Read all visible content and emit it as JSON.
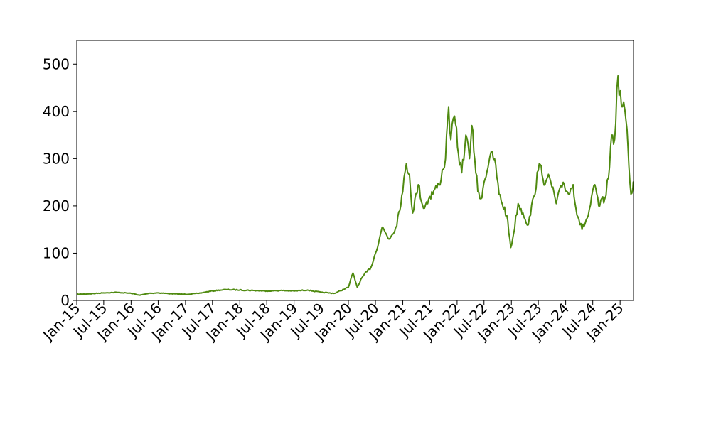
{
  "chart_data": {
    "type": "line",
    "title": "",
    "xlabel": "",
    "ylabel": "",
    "xlim": [
      "2015-01-01",
      "2025-04-01"
    ],
    "ylim": [
      0,
      550
    ],
    "grid": false,
    "legend": "none",
    "x_ticks": [
      "2015-01-01",
      "2015-07-01",
      "2016-01-01",
      "2016-07-01",
      "2017-01-01",
      "2017-07-01",
      "2018-01-01",
      "2018-07-01",
      "2019-01-01",
      "2019-07-01",
      "2020-01-01",
      "2020-07-01",
      "2021-01-01",
      "2021-07-01",
      "2022-01-01",
      "2022-07-01",
      "2023-01-01",
      "2023-07-01",
      "2024-01-01",
      "2024-07-01",
      "2025-01-01"
    ],
    "x_tick_labels": [
      "Jan-15",
      "Jul-15",
      "Jan-16",
      "Jul-16",
      "Jan-17",
      "Jul-17",
      "Jan-18",
      "Jul-18",
      "Jan-19",
      "Jul-19",
      "Jan-20",
      "Jul-20",
      "Jan-21",
      "Jul-21",
      "Jan-22",
      "Jul-22",
      "Jan-23",
      "Jul-23",
      "Jan-24",
      "Jul-24",
      "Jan-25"
    ],
    "y_ticks": [
      0,
      100,
      200,
      300,
      400,
      500
    ],
    "y_tick_labels": [
      "0",
      "100",
      "200",
      "300",
      "400",
      "500"
    ],
    "series": [
      {
        "color": "#4f8a10",
        "points": [
          [
            "2015-01-01",
            13
          ],
          [
            "2015-04-01",
            14
          ],
          [
            "2015-07-01",
            16
          ],
          [
            "2015-10-01",
            17
          ],
          [
            "2016-01-01",
            15
          ],
          [
            "2016-03-01",
            11
          ],
          [
            "2016-05-01",
            15
          ],
          [
            "2016-07-01",
            16
          ],
          [
            "2016-10-01",
            14
          ],
          [
            "2017-01-01",
            13
          ],
          [
            "2017-04-01",
            15
          ],
          [
            "2017-07-01",
            20
          ],
          [
            "2017-10-01",
            23
          ],
          [
            "2018-01-01",
            22
          ],
          [
            "2018-04-01",
            21
          ],
          [
            "2018-07-01",
            20
          ],
          [
            "2018-10-01",
            21
          ],
          [
            "2019-01-01",
            20
          ],
          [
            "2019-04-01",
            22
          ],
          [
            "2019-07-01",
            17
          ],
          [
            "2019-10-01",
            15
          ],
          [
            "2020-01-01",
            28
          ],
          [
            "2020-02-01",
            58
          ],
          [
            "2020-03-01",
            28
          ],
          [
            "2020-04-01",
            48
          ],
          [
            "2020-06-01",
            70
          ],
          [
            "2020-07-01",
            100
          ],
          [
            "2020-08-15",
            155
          ],
          [
            "2020-10-01",
            130
          ],
          [
            "2020-11-15",
            155
          ],
          [
            "2021-01-01",
            230
          ],
          [
            "2021-01-25",
            290
          ],
          [
            "2021-02-15",
            265
          ],
          [
            "2021-03-08",
            185
          ],
          [
            "2021-04-15",
            245
          ],
          [
            "2021-05-20",
            195
          ],
          [
            "2021-07-01",
            220
          ],
          [
            "2021-09-01",
            245
          ],
          [
            "2021-10-15",
            300
          ],
          [
            "2021-11-05",
            410
          ],
          [
            "2021-11-20",
            340
          ],
          [
            "2021-12-15",
            390
          ],
          [
            "2022-01-10",
            310
          ],
          [
            "2022-02-01",
            270
          ],
          [
            "2022-03-01",
            350
          ],
          [
            "2022-03-25",
            300
          ],
          [
            "2022-04-10",
            370
          ],
          [
            "2022-05-20",
            230
          ],
          [
            "2022-06-10",
            215
          ],
          [
            "2022-07-01",
            250
          ],
          [
            "2022-08-10",
            305
          ],
          [
            "2022-09-10",
            300
          ],
          [
            "2022-10-10",
            225
          ],
          [
            "2022-12-01",
            180
          ],
          [
            "2022-12-28",
            112
          ],
          [
            "2023-01-15",
            140
          ],
          [
            "2023-02-15",
            205
          ],
          [
            "2023-03-20",
            185
          ],
          [
            "2023-04-25",
            160
          ],
          [
            "2023-06-01",
            220
          ],
          [
            "2023-07-01",
            275
          ],
          [
            "2023-07-20",
            285
          ],
          [
            "2023-08-15",
            245
          ],
          [
            "2023-09-15",
            260
          ],
          [
            "2023-10-30",
            205
          ],
          [
            "2023-12-15",
            250
          ],
          [
            "2024-01-20",
            225
          ],
          [
            "2024-02-20",
            245
          ],
          [
            "2024-03-10",
            195
          ],
          [
            "2024-04-20",
            150
          ],
          [
            "2024-06-01",
            180
          ],
          [
            "2024-07-15",
            245
          ],
          [
            "2024-08-10",
            200
          ],
          [
            "2024-09-20",
            215
          ],
          [
            "2024-10-15",
            260
          ],
          [
            "2024-11-05",
            350
          ],
          [
            "2024-11-25",
            340
          ],
          [
            "2024-12-18",
            475
          ],
          [
            "2025-01-10",
            410
          ],
          [
            "2025-01-25",
            420
          ],
          [
            "2025-02-10",
            380
          ],
          [
            "2025-03-01",
            285
          ],
          [
            "2025-03-15",
            225
          ],
          [
            "2025-03-28",
            240
          ],
          [
            "2025-04-01",
            250
          ]
        ]
      }
    ]
  }
}
